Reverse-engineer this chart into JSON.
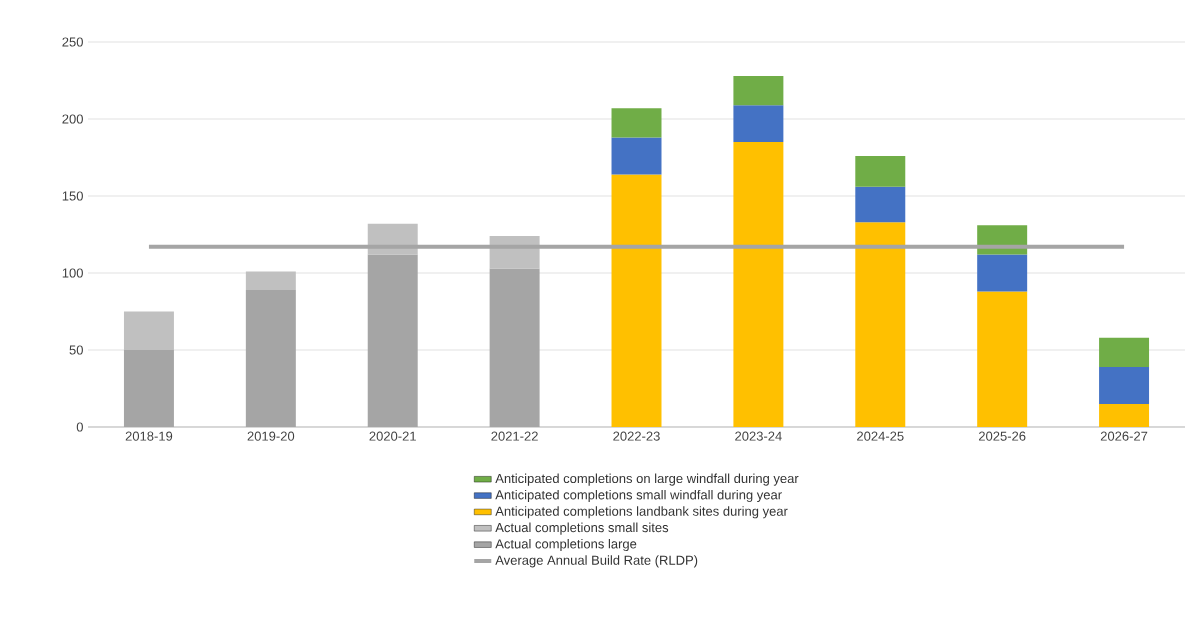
{
  "chart_data": {
    "type": "bar",
    "stacked": true,
    "categories": [
      "2018-19",
      "2019-20",
      "2020-21",
      "2021-22",
      "2022-23",
      "2023-24",
      "2024-25",
      "2025-26",
      "2026-27"
    ],
    "series": [
      {
        "name": "Average Annual Build Rate (RLDP)",
        "type": "line",
        "color": "#a5a5a5",
        "values": [
          117,
          117,
          117,
          117,
          117,
          117,
          117,
          117,
          117
        ]
      },
      {
        "name": "Actual completions large",
        "color": "#a5a5a5",
        "values": [
          50,
          89,
          112,
          103,
          null,
          null,
          null,
          null,
          null
        ]
      },
      {
        "name": "Actual completions small sites",
        "color": "#c0c0c0",
        "values": [
          25,
          12,
          20,
          21,
          null,
          null,
          null,
          null,
          null
        ]
      },
      {
        "name": "Anticipated completions landbank sites during year",
        "color": "#ffc000",
        "values": [
          null,
          null,
          null,
          null,
          164,
          185,
          133,
          88,
          15
        ]
      },
      {
        "name": "Anticipated completions small windfall during year",
        "color": "#4472c4",
        "values": [
          null,
          null,
          null,
          null,
          24,
          24,
          23,
          24,
          24
        ]
      },
      {
        "name": "Anticipated completions on large windfall during year",
        "color": "#70ad47",
        "values": [
          null,
          null,
          null,
          null,
          19,
          19,
          20,
          19,
          19
        ]
      }
    ],
    "ylim": [
      0,
      250
    ],
    "yticks": [
      0,
      50,
      100,
      150,
      200,
      250
    ],
    "grid": "y",
    "legend": "bottom"
  }
}
